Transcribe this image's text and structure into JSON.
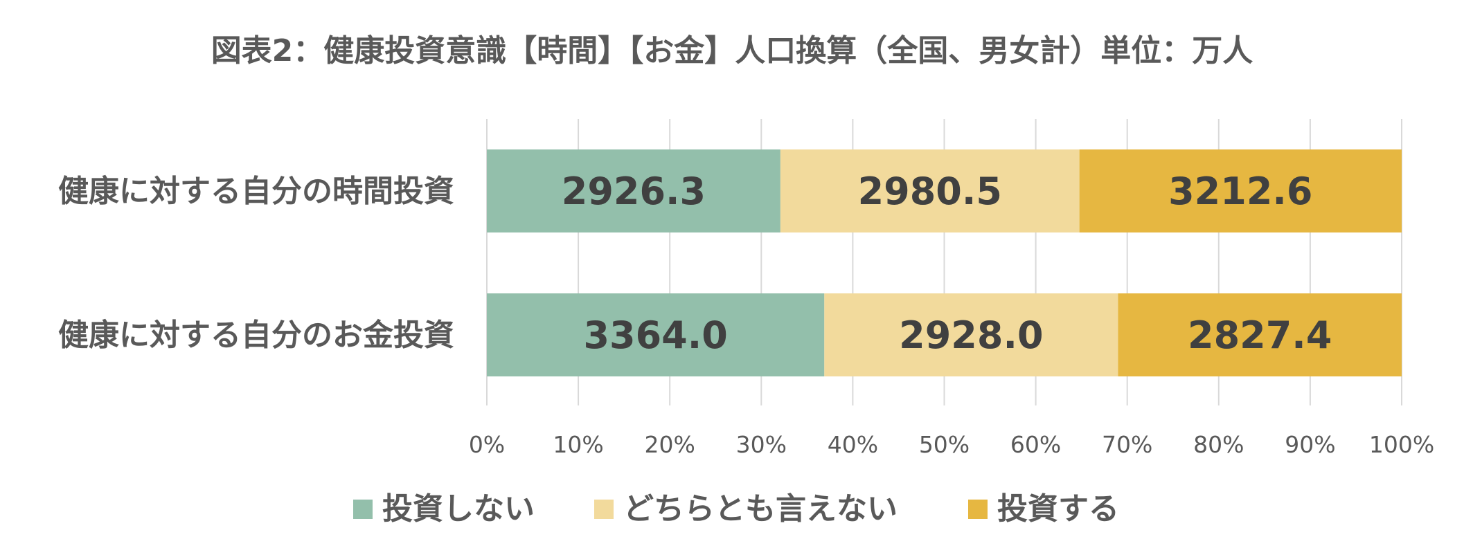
{
  "chart_data": {
    "type": "bar",
    "orientation": "horizontal",
    "stacked": "percent",
    "title": "図表2：健康投資意識【時間】【お金】人口換算（全国、男女計）単位：万人",
    "categories": [
      "健康に対する自分の時間投資",
      "健康に対する自分のお金投資"
    ],
    "series": [
      {
        "name": "投資しない",
        "color": "#93bfab",
        "values": [
          2926.3,
          3364.0
        ],
        "labels": [
          "2926.3",
          "3364.0"
        ]
      },
      {
        "name": "どちらとも言えない",
        "color": "#f2da9c",
        "values": [
          2980.5,
          2928.0
        ],
        "labels": [
          "2980.5",
          "2928.0"
        ]
      },
      {
        "name": "投資する",
        "color": "#e6b741",
        "values": [
          3212.6,
          2827.4
        ],
        "labels": [
          "3212.6",
          "2827.4"
        ]
      }
    ],
    "x_ticks": [
      "0%",
      "10%",
      "20%",
      "30%",
      "40%",
      "50%",
      "60%",
      "70%",
      "80%",
      "90%",
      "100%"
    ],
    "xlim": [
      0,
      100
    ],
    "grid": true,
    "legend": "bottom"
  }
}
